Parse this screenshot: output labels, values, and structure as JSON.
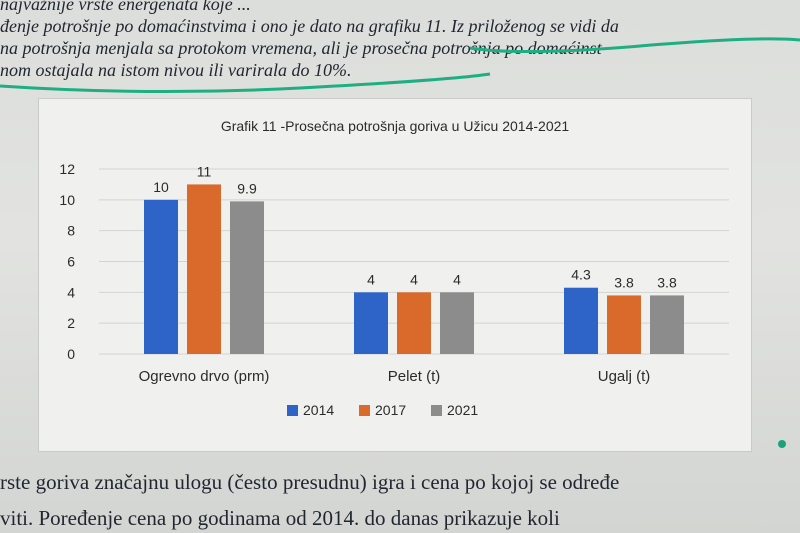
{
  "page_text": {
    "top_lines": [
      "najvažnije vrste energenata koje ...",
      "đenje potrošnje po domaćinstvima i ono je dato na grafiku 11. Iz priloženog se vidi da",
      "na potrošnja menjala sa protokom vremena, ali je prosečna potrošnja po domaćinst",
      "nom ostajala na istom nivou ili varirala do 10%."
    ],
    "bottom_lines": [
      "rste goriva značajnu ulogu (često presudnu) igra i cena po kojoj se određe",
      "viti. Poređenje cena po godinama od 2014. do danas prikazuje koli"
    ]
  },
  "colors": {
    "series_2014": "#2e64c8",
    "series_2017": "#d96a2b",
    "series_2021": "#8c8c8c",
    "highlight": "#1fae82",
    "grid": "#d3d4d2",
    "text": "#2b2b2b"
  },
  "chart_data": {
    "type": "bar",
    "title": "Grafik 11 -Prosečna potrošnja goriva u Užicu 2014-2021",
    "categories": [
      "Ogrevno drvo (prm)",
      "Pelet (t)",
      "Ugalj (t)"
    ],
    "series": [
      {
        "name": "2014",
        "values": [
          10,
          4,
          4.3
        ],
        "labels": [
          "10",
          "4",
          "4.3"
        ]
      },
      {
        "name": "2017",
        "values": [
          11,
          4,
          3.8
        ],
        "labels": [
          "11",
          "4",
          "3.8"
        ]
      },
      {
        "name": "2021",
        "values": [
          9.9,
          4,
          3.8
        ],
        "labels": [
          "9.9",
          "4",
          "3.8"
        ]
      }
    ],
    "y_ticks": [
      "0",
      "2",
      "4",
      "6",
      "8",
      "10",
      "12"
    ],
    "ylim": [
      0,
      12
    ],
    "grid": true,
    "legend_position": "bottom"
  }
}
